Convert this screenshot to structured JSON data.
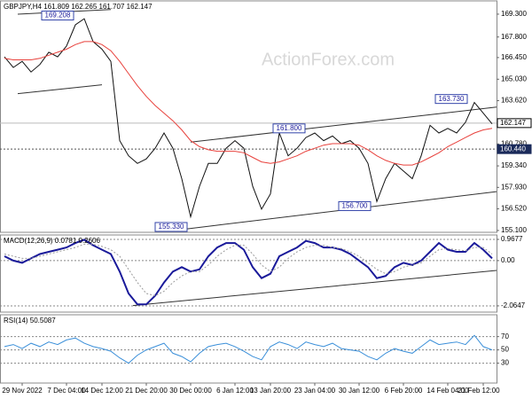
{
  "chart_data": [
    {
      "type": "line",
      "title": "GBPJPY,H4 161.809 162.265 161.707 162.147",
      "watermark": "ActionForex.com",
      "xlim": [
        -0.5,
        55.5
      ],
      "ylim": [
        154.98,
        170.17
      ],
      "yticks": [
        {
          "value": 169.3,
          "label": "169.300"
        },
        {
          "value": 167.8,
          "label": "167.800"
        },
        {
          "value": 166.45,
          "label": "166.450"
        },
        {
          "value": 165.03,
          "label": "165.030"
        },
        {
          "value": 163.62,
          "label": "163.620"
        },
        {
          "value": 160.78,
          "label": "160.780"
        },
        {
          "value": 159.34,
          "label": "159.340"
        },
        {
          "value": 157.93,
          "label": "157.930"
        },
        {
          "value": 156.52,
          "label": "156.520"
        },
        {
          "value": 155.1,
          "label": "155.100"
        }
      ],
      "levels": [
        {
          "value": 162.147,
          "label": "162.147",
          "color": "#000000"
        },
        {
          "value": 160.44,
          "label": "160.440",
          "color": "#1a2a5a"
        }
      ],
      "series": [
        {
          "color": "#111111",
          "values": [
            166.5,
            165.8,
            166.2,
            165.5,
            166.0,
            166.8,
            166.5,
            167.2,
            168.6,
            169.0,
            167.5,
            167.0,
            166.2,
            161.0,
            160.0,
            159.5,
            159.8,
            160.5,
            161.5,
            160.5,
            158.5,
            156.0,
            158.0,
            159.5,
            159.5,
            160.5,
            161.0,
            160.5,
            158.0,
            156.5,
            157.5,
            161.5,
            160.0,
            160.5,
            161.2,
            161.5,
            161.0,
            161.3,
            160.8,
            161.0,
            160.5,
            159.5,
            157.0,
            158.5,
            159.5,
            159.0,
            158.5,
            160.0,
            162.0,
            161.5,
            161.8,
            161.5,
            162.2,
            163.5,
            162.8,
            162.1
          ]
        },
        {
          "color": "#e8413c",
          "values": [
            166.4,
            166.3,
            166.3,
            166.3,
            166.4,
            166.6,
            166.8,
            167.0,
            167.3,
            167.5,
            167.5,
            167.3,
            166.9,
            166.2,
            165.4,
            164.6,
            163.9,
            163.3,
            162.8,
            162.3,
            161.7,
            161.0,
            160.6,
            160.4,
            160.3,
            160.3,
            160.3,
            160.2,
            159.9,
            159.6,
            159.5,
            159.6,
            159.8,
            160.0,
            160.3,
            160.5,
            160.7,
            160.8,
            160.8,
            160.8,
            160.7,
            160.4,
            160.0,
            159.7,
            159.5,
            159.4,
            159.4,
            159.6,
            159.9,
            160.2,
            160.6,
            160.9,
            161.2,
            161.5,
            161.7,
            161.8
          ]
        }
      ],
      "trendlines": [
        {
          "x": [
            1.5,
            12
          ],
          "y": [
            169.3,
            169.6
          ]
        },
        {
          "x": [
            1.5,
            11
          ],
          "y": [
            164.08,
            164.66
          ]
        },
        {
          "x": [
            21,
            55.5
          ],
          "y": [
            160.9,
            163.2
          ]
        },
        {
          "x": [
            20.5,
            55.5
          ],
          "y": [
            155.2,
            157.65
          ]
        }
      ],
      "annotations": [
        {
          "x": 6,
          "y": 169.208,
          "label": "169.208"
        },
        {
          "x": 32.1,
          "y": 161.8,
          "label": "161.800"
        },
        {
          "x": 50.4,
          "y": 163.73,
          "label": "163.730"
        },
        {
          "x": 18.8,
          "y": 155.33,
          "label": "155.330"
        },
        {
          "x": 39.5,
          "y": 156.7,
          "label": "156.700"
        }
      ]
    },
    {
      "type": "line",
      "title": "MACD(12,26,9) 0.0781 0.2606",
      "xlim": [
        -0.5,
        55.5
      ],
      "ylim": [
        -2.35,
        1.17
      ],
      "yticks": [
        0.9677,
        {
          "value": 0,
          "label": "0.00"
        },
        -2.0647
      ],
      "grid": "dotted",
      "series": [
        {
          "color": "#1a1a9a",
          "width": 2,
          "values": [
            0.2,
            0.0,
            -0.1,
            0.1,
            0.3,
            0.4,
            0.5,
            0.6,
            0.8,
            0.95,
            0.7,
            0.5,
            0.3,
            -0.5,
            -1.5,
            -2.0,
            -2.0,
            -1.6,
            -1.0,
            -0.5,
            -0.3,
            -0.5,
            -0.4,
            0.2,
            0.6,
            0.8,
            0.8,
            0.5,
            -0.3,
            -0.8,
            -0.6,
            0.2,
            0.4,
            0.6,
            0.9,
            0.8,
            0.6,
            0.6,
            0.5,
            0.3,
            0.0,
            -0.3,
            -0.8,
            -0.7,
            -0.3,
            -0.1,
            -0.2,
            0.0,
            0.4,
            0.8,
            0.5,
            0.4,
            0.4,
            0.8,
            0.5,
            0.1
          ]
        },
        {
          "color": "#999999",
          "style": "dotted",
          "values": [
            0.3,
            0.2,
            0.1,
            0.1,
            0.2,
            0.3,
            0.4,
            0.5,
            0.6,
            0.75,
            0.75,
            0.65,
            0.5,
            0.2,
            -0.4,
            -1.0,
            -1.5,
            -1.6,
            -1.4,
            -1.0,
            -0.7,
            -0.5,
            -0.5,
            -0.2,
            0.2,
            0.5,
            0.7,
            0.7,
            0.3,
            -0.2,
            -0.5,
            -0.3,
            0.1,
            0.4,
            0.6,
            0.7,
            0.7,
            0.6,
            0.55,
            0.4,
            0.2,
            -0.1,
            -0.4,
            -0.6,
            -0.5,
            -0.3,
            -0.2,
            -0.1,
            0.2,
            0.5,
            0.55,
            0.5,
            0.45,
            0.6,
            0.6,
            0.3
          ]
        }
      ],
      "trendlines": [
        {
          "x": [
            14.5,
            55.5
          ],
          "y": [
            -2.05,
            -0.45
          ]
        }
      ]
    },
    {
      "type": "line",
      "title": "RSI(14) 50.5087",
      "xlim": [
        -0.5,
        55.5
      ],
      "ylim": [
        0,
        103
      ],
      "yticks": [
        70,
        50,
        30
      ],
      "grid": "dotted",
      "series": [
        {
          "color": "#3a8fd9",
          "values": [
            55,
            58,
            52,
            60,
            55,
            62,
            58,
            65,
            68,
            60,
            55,
            52,
            48,
            38,
            30,
            42,
            50,
            55,
            60,
            45,
            40,
            32,
            45,
            55,
            58,
            60,
            55,
            48,
            40,
            35,
            55,
            62,
            58,
            52,
            62,
            58,
            55,
            60,
            52,
            50,
            48,
            40,
            35,
            45,
            52,
            48,
            45,
            55,
            65,
            58,
            60,
            62,
            58,
            72,
            55,
            50
          ]
        }
      ],
      "xticks": [
        {
          "value": 2,
          "label": "29 Nov 2022"
        },
        {
          "value": 7,
          "label": "7 Dec 04:00"
        },
        {
          "value": 11,
          "label": "14 Dec 12:00"
        },
        {
          "value": 16,
          "label": "21 Dec 20:00"
        },
        {
          "value": 21,
          "label": "30 Dec 00:00"
        },
        {
          "value": 26,
          "label": "6 Jan 12:00"
        },
        {
          "value": 30,
          "label": "13 Jan 20:00"
        },
        {
          "value": 35,
          "label": "23 Jan 04:00"
        },
        {
          "value": 40,
          "label": "30 Jan 12:00"
        },
        {
          "value": 45,
          "label": "6 Feb 20:00"
        },
        {
          "value": 50,
          "label": "14 Feb 04:00"
        },
        {
          "value": 54,
          "label": "21 Feb 12:00"
        }
      ]
    }
  ]
}
